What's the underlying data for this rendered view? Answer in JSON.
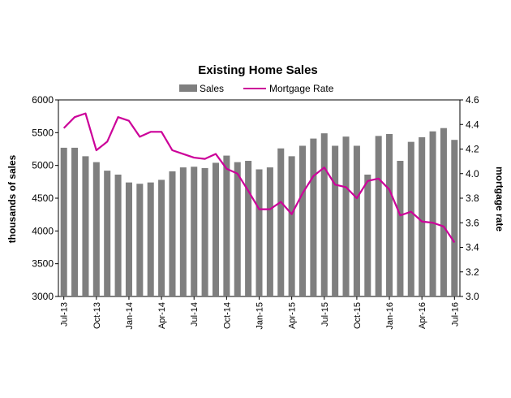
{
  "chart_data": {
    "type": "bar",
    "title": "Existing Home Sales",
    "ylabel": "thousands of sales",
    "y2label": "mortgage rate",
    "ylim": [
      3000,
      6000
    ],
    "y2lim": [
      3.0,
      4.6
    ],
    "yticks": [
      3000,
      3500,
      4000,
      4500,
      5000,
      5500,
      6000
    ],
    "y2ticks": [
      "3.0",
      "3.2",
      "3.4",
      "3.6",
      "3.8",
      "4.0",
      "4.2",
      "4.4",
      "4.6"
    ],
    "x_tick_labels": [
      "Jul-13",
      "Oct-13",
      "Jan-14",
      "Apr-14",
      "Jul-14",
      "Oct-14",
      "Jan-15",
      "Apr-15",
      "Jul-15",
      "Oct-15",
      "Jan-16",
      "Apr-16",
      "Jul-16"
    ],
    "legend_position": "top",
    "colors": {
      "sales": "#7f7f7f",
      "mortgage": "#cc0099"
    },
    "categories": [
      "Jul-13",
      "Aug-13",
      "Sep-13",
      "Oct-13",
      "Nov-13",
      "Dec-13",
      "Jan-14",
      "Feb-14",
      "Mar-14",
      "Apr-14",
      "May-14",
      "Jun-14",
      "Jul-14",
      "Aug-14",
      "Sep-14",
      "Oct-14",
      "Nov-14",
      "Dec-14",
      "Jan-15",
      "Feb-15",
      "Mar-15",
      "Apr-15",
      "May-15",
      "Jun-15",
      "Jul-15",
      "Aug-15",
      "Sep-15",
      "Oct-15",
      "Nov-15",
      "Dec-15",
      "Jan-16",
      "Feb-16",
      "Mar-16",
      "Apr-16",
      "May-16",
      "Jun-16",
      "Jul-16"
    ],
    "series": [
      {
        "name": "Sales",
        "type": "bar",
        "axis": "left",
        "values": [
          5270,
          5270,
          5140,
          5050,
          4920,
          4860,
          4740,
          4720,
          4740,
          4780,
          4910,
          4970,
          4980,
          4960,
          5040,
          5150,
          5050,
          5070,
          4940,
          4970,
          5260,
          5140,
          5300,
          5410,
          5490,
          5300,
          5440,
          5300,
          4860,
          5450,
          5480,
          5070,
          5360,
          5430,
          5520,
          5570,
          5390
        ]
      },
      {
        "name": "Mortgage Rate",
        "type": "line",
        "axis": "right",
        "values": [
          4.37,
          4.46,
          4.49,
          4.19,
          4.26,
          4.46,
          4.43,
          4.3,
          4.34,
          4.34,
          4.19,
          4.16,
          4.13,
          4.12,
          4.16,
          4.04,
          4.0,
          3.86,
          3.71,
          3.71,
          3.77,
          3.67,
          3.84,
          3.98,
          4.05,
          3.91,
          3.89,
          3.8,
          3.94,
          3.96,
          3.87,
          3.66,
          3.69,
          3.61,
          3.6,
          3.57,
          3.44
        ]
      }
    ]
  }
}
